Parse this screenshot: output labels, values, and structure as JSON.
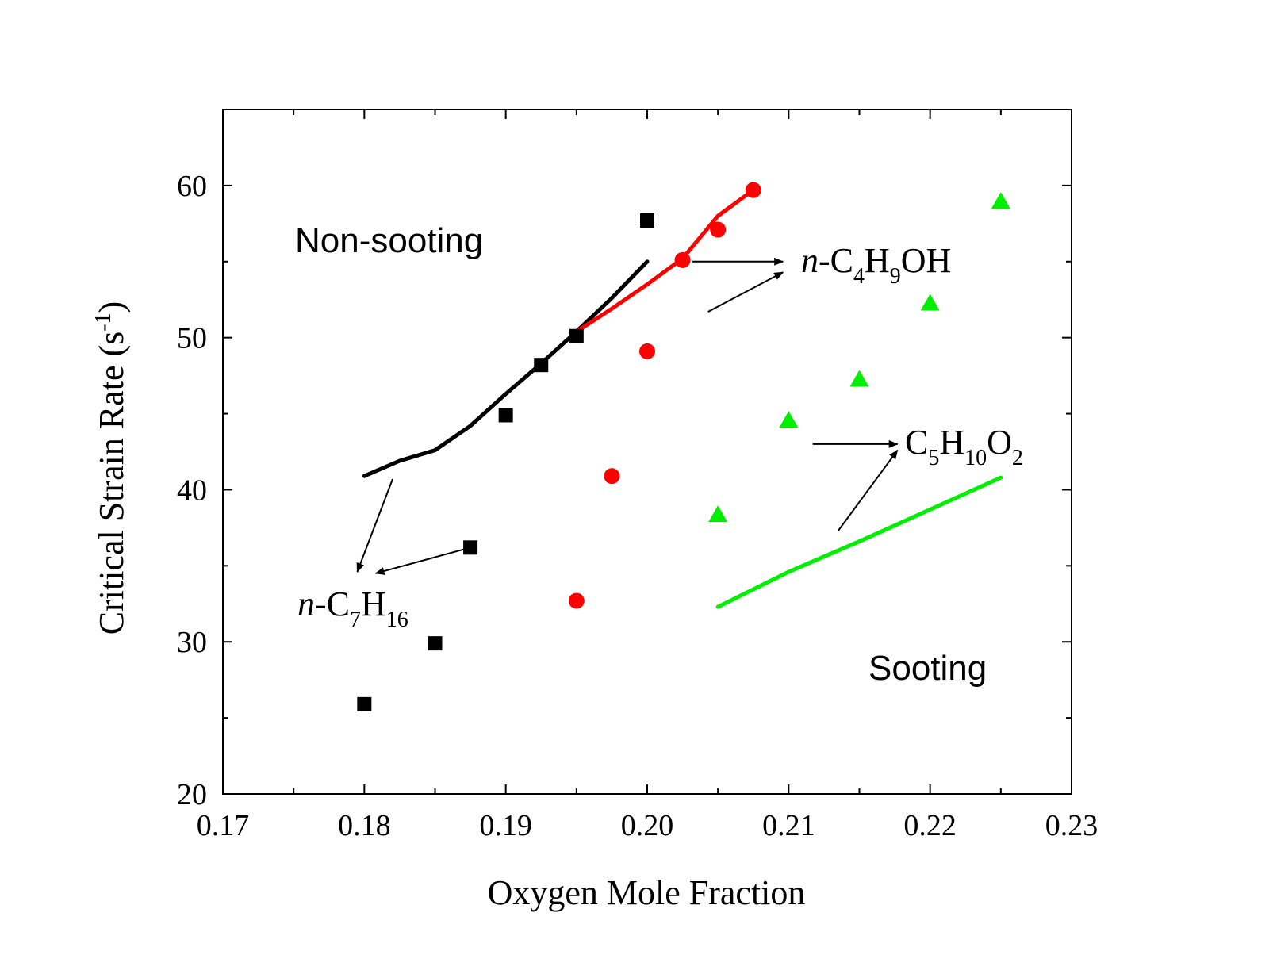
{
  "chart_data": {
    "type": "scatter",
    "xlabel": "Oxygen Mole Fraction",
    "ylabel": "Critical Strain Rate (s-1)",
    "ylabel_main": "Critical Strain Rate (s",
    "ylabel_sup": "-1",
    "ylabel_close": ")",
    "xlim": [
      0.17,
      0.23
    ],
    "ylim": [
      20,
      65
    ],
    "xticks": [
      "0.17",
      "0.18",
      "0.19",
      "0.20",
      "0.21",
      "0.22",
      "0.23"
    ],
    "yticks": [
      "20",
      "30",
      "40",
      "50",
      "60"
    ],
    "grid": false,
    "legend": "none",
    "series": [
      {
        "key": "heptane",
        "marker": "square",
        "color": "#000000",
        "points": [
          [
            0.18,
            25.9
          ],
          [
            0.185,
            29.9
          ],
          [
            0.1875,
            36.2
          ],
          [
            0.19,
            44.9
          ],
          [
            0.1925,
            48.2
          ],
          [
            0.195,
            50.1
          ],
          [
            0.2,
            57.7
          ]
        ],
        "line": [
          [
            0.18,
            40.9
          ],
          [
            0.1825,
            41.9
          ],
          [
            0.185,
            42.6
          ],
          [
            0.1875,
            44.2
          ],
          [
            0.19,
            46.3
          ],
          [
            0.1925,
            48.3
          ],
          [
            0.195,
            50.4
          ],
          [
            0.1975,
            52.6
          ],
          [
            0.2,
            55.0
          ]
        ]
      },
      {
        "key": "butanol",
        "marker": "circle",
        "color": "#ff0000",
        "points": [
          [
            0.195,
            32.7
          ],
          [
            0.1975,
            40.9
          ],
          [
            0.2,
            49.1
          ],
          [
            0.2025,
            55.1
          ],
          [
            0.205,
            57.1
          ],
          [
            0.2075,
            59.7
          ]
        ],
        "line": [
          [
            0.195,
            50.4
          ],
          [
            0.1975,
            51.9
          ],
          [
            0.2,
            53.5
          ],
          [
            0.2025,
            55.2
          ],
          [
            0.205,
            58.0
          ],
          [
            0.2075,
            59.7
          ]
        ]
      },
      {
        "key": "ester",
        "marker": "triangle",
        "color": "#00ee00",
        "points": [
          [
            0.205,
            38.4
          ],
          [
            0.21,
            44.6
          ],
          [
            0.215,
            47.3
          ],
          [
            0.22,
            52.3
          ],
          [
            0.225,
            59.0
          ]
        ],
        "line": [
          [
            0.205,
            32.3
          ],
          [
            0.21,
            34.6
          ],
          [
            0.215,
            36.6
          ],
          [
            0.22,
            38.7
          ],
          [
            0.225,
            40.8
          ]
        ]
      }
    ],
    "annotations": {
      "non_sooting": "Non-sooting",
      "sooting": "Sooting",
      "heptane": {
        "italic": "n",
        "parts": [
          "-C",
          "7",
          "H",
          "16"
        ]
      },
      "butanol": {
        "italic": "n",
        "parts": [
          "-C",
          "4",
          "H",
          "9",
          "OH"
        ]
      },
      "ester": {
        "parts": [
          "C",
          "5",
          "H",
          "10",
          "O",
          "2"
        ]
      }
    },
    "arrows": [
      {
        "target": "heptane",
        "from": [
          0.182,
          40.7
        ],
        "to": [
          0.1795,
          34.6
        ]
      },
      {
        "target": "heptane",
        "from": [
          0.1875,
          36.2
        ],
        "to": [
          0.1808,
          34.5
        ]
      },
      {
        "target": "butanol",
        "from": [
          0.2032,
          55.0
        ],
        "to": [
          0.2096,
          55.0
        ]
      },
      {
        "target": "butanol",
        "from": [
          0.2043,
          51.7
        ],
        "to": [
          0.2096,
          54.3
        ]
      },
      {
        "target": "ester",
        "from": [
          0.2117,
          43.0
        ],
        "to": [
          0.2177,
          43.0
        ]
      },
      {
        "target": "ester",
        "from": [
          0.2135,
          37.3
        ],
        "to": [
          0.2177,
          42.6
        ]
      }
    ]
  }
}
